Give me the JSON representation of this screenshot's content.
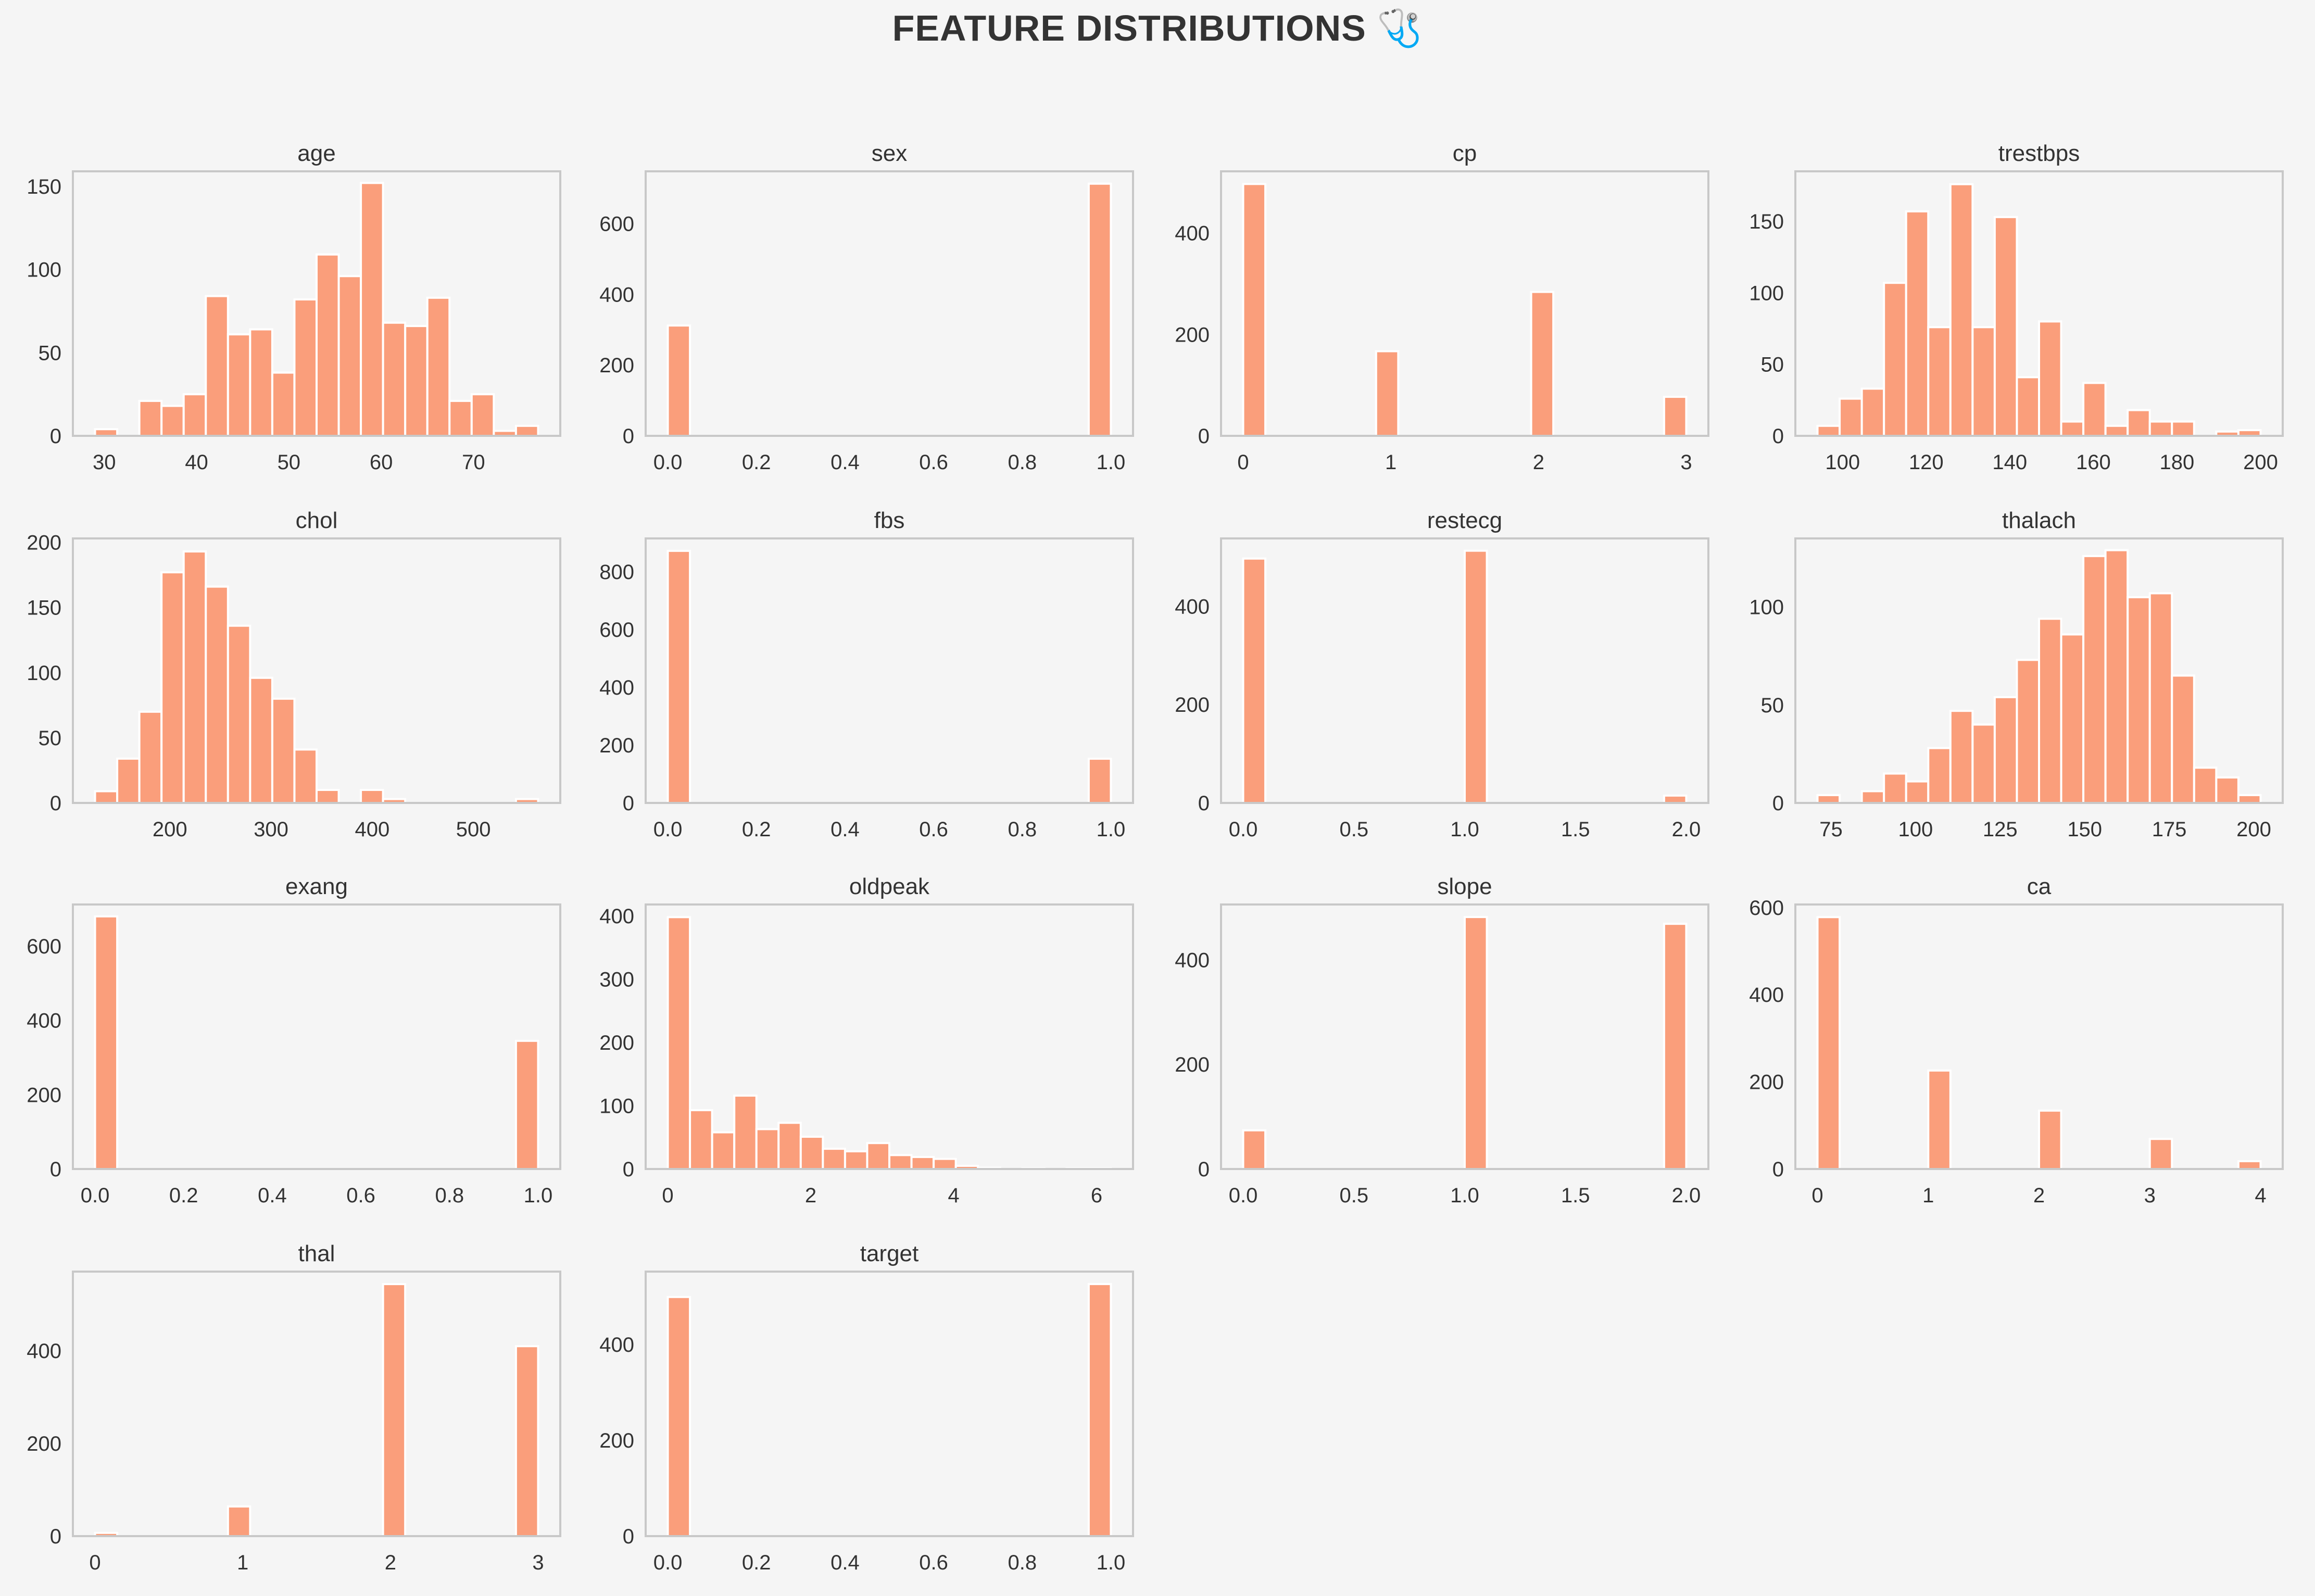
{
  "title": "FEATURE DISTRIBUTIONS 🩺",
  "colors": {
    "bar": "#fa9e7b",
    "bar_edge": "#ffffff",
    "frame": "#c8c8c8",
    "text": "#333333",
    "background": "#f5f5f5"
  },
  "chart_data": [
    {
      "type": "bar",
      "title": "age",
      "xlabel": "",
      "ylabel": "",
      "bin_edges": [
        29,
        31.4,
        33.8,
        36.2,
        38.6,
        41,
        43.4,
        45.8,
        48.2,
        50.6,
        53,
        55.4,
        57.8,
        60.2,
        62.6,
        65,
        67.4,
        69.8,
        72.2,
        74.6,
        77
      ],
      "values": [
        4,
        0,
        21,
        18,
        25,
        84,
        61,
        64,
        38,
        82,
        109,
        96,
        152,
        68,
        66,
        83,
        21,
        25,
        3,
        6
      ],
      "xlim": [
        26.6,
        79.4
      ],
      "ylim": [
        0,
        159
      ],
      "xticks": [
        30,
        40,
        50,
        60,
        70
      ],
      "yticks": [
        0,
        50,
        100,
        150
      ],
      "xtick_labels": [
        "30",
        "40",
        "50",
        "60",
        "70"
      ],
      "ytick_labels": [
        "0",
        "50",
        "100",
        "150"
      ]
    },
    {
      "type": "bar",
      "title": "sex",
      "xlabel": "",
      "ylabel": "",
      "bin_edges": [
        0,
        0.05,
        0.1,
        0.15,
        0.2,
        0.25,
        0.3,
        0.35,
        0.4,
        0.45,
        0.5,
        0.55,
        0.6,
        0.65,
        0.7,
        0.75,
        0.8,
        0.85,
        0.9,
        0.95,
        1.0
      ],
      "values": [
        312,
        0,
        0,
        0,
        0,
        0,
        0,
        0,
        0,
        0,
        0,
        0,
        0,
        0,
        0,
        0,
        0,
        0,
        0,
        713
      ],
      "xlim": [
        -0.05,
        1.05
      ],
      "ylim": [
        0,
        748
      ],
      "xticks": [
        0,
        0.2,
        0.4,
        0.6,
        0.8,
        1.0
      ],
      "yticks": [
        0,
        200,
        400,
        600
      ],
      "xtick_labels": [
        "0.0",
        "0.2",
        "0.4",
        "0.6",
        "0.8",
        "1.0"
      ],
      "ytick_labels": [
        "0",
        "200",
        "400",
        "600"
      ]
    },
    {
      "type": "bar",
      "title": "cp",
      "xlabel": "",
      "ylabel": "",
      "bin_edges": [
        0,
        0.15,
        0.3,
        0.45,
        0.6,
        0.75,
        0.9,
        1.05,
        1.2,
        1.35,
        1.5,
        1.65,
        1.8,
        1.95,
        2.1,
        2.25,
        2.4,
        2.55,
        2.7,
        2.85,
        3.0
      ],
      "values": [
        497,
        0,
        0,
        0,
        0,
        0,
        167,
        0,
        0,
        0,
        0,
        0,
        0,
        284,
        0,
        0,
        0,
        0,
        0,
        77
      ],
      "xlim": [
        -0.15,
        3.15
      ],
      "ylim": [
        0,
        522
      ],
      "xticks": [
        0,
        1,
        2,
        3
      ],
      "yticks": [
        0,
        200,
        400
      ],
      "xtick_labels": [
        "0",
        "1",
        "2",
        "3"
      ],
      "ytick_labels": [
        "0",
        "200",
        "400"
      ]
    },
    {
      "type": "bar",
      "title": "trestbps",
      "xlabel": "",
      "ylabel": "",
      "bin_edges": [
        94,
        99.3,
        104.6,
        109.9,
        115.2,
        120.5,
        125.8,
        131.1,
        136.4,
        141.7,
        147,
        152.3,
        157.6,
        162.9,
        168.2,
        173.5,
        178.8,
        184.1,
        189.4,
        194.7,
        200
      ],
      "values": [
        7,
        26,
        33,
        107,
        157,
        76,
        176,
        76,
        153,
        41,
        80,
        10,
        37,
        7,
        18,
        10,
        10,
        0,
        3,
        4
      ],
      "xlim": [
        88.7,
        205.3
      ],
      "ylim": [
        0,
        185
      ],
      "xticks": [
        100,
        120,
        140,
        160,
        180,
        200
      ],
      "yticks": [
        0,
        50,
        100,
        150
      ],
      "xtick_labels": [
        "100",
        "120",
        "140",
        "160",
        "180",
        "200"
      ],
      "ytick_labels": [
        "0",
        "50",
        "100",
        "150"
      ]
    },
    {
      "type": "bar",
      "title": "chol",
      "xlabel": "",
      "ylabel": "",
      "bin_edges": [
        126,
        147.9,
        169.8,
        191.7,
        213.6,
        235.5,
        257.4,
        279.3,
        301.2,
        323.1,
        345,
        366.9,
        388.8,
        410.7,
        432.6,
        454.5,
        476.4,
        498.3,
        520.2,
        542.1,
        564
      ],
      "values": [
        9,
        34,
        70,
        177,
        193,
        166,
        136,
        96,
        80,
        41,
        10,
        0,
        10,
        3,
        0,
        0,
        0,
        0,
        0,
        3
      ],
      "xlim": [
        104.1,
        585.9
      ],
      "ylim": [
        0,
        203
      ],
      "xticks": [
        200,
        300,
        400,
        500
      ],
      "yticks": [
        0,
        50,
        100,
        150,
        200
      ],
      "xtick_labels": [
        "200",
        "300",
        "400",
        "500"
      ],
      "ytick_labels": [
        "0",
        "50",
        "100",
        "150",
        "200"
      ]
    },
    {
      "type": "bar",
      "title": "fbs",
      "xlabel": "",
      "ylabel": "",
      "bin_edges": [
        0,
        0.05,
        0.1,
        0.15,
        0.2,
        0.25,
        0.3,
        0.35,
        0.4,
        0.45,
        0.5,
        0.55,
        0.6,
        0.65,
        0.7,
        0.75,
        0.8,
        0.85,
        0.9,
        0.95,
        1.0
      ],
      "values": [
        872,
        0,
        0,
        0,
        0,
        0,
        0,
        0,
        0,
        0,
        0,
        0,
        0,
        0,
        0,
        0,
        0,
        0,
        0,
        153
      ],
      "xlim": [
        -0.05,
        1.05
      ],
      "ylim": [
        0,
        915
      ],
      "xticks": [
        0,
        0.2,
        0.4,
        0.6,
        0.8,
        1.0
      ],
      "yticks": [
        0,
        200,
        400,
        600,
        800
      ],
      "xtick_labels": [
        "0.0",
        "0.2",
        "0.4",
        "0.6",
        "0.8",
        "1.0"
      ],
      "ytick_labels": [
        "0",
        "200",
        "400",
        "600",
        "800"
      ]
    },
    {
      "type": "bar",
      "title": "restecg",
      "xlabel": "",
      "ylabel": "",
      "bin_edges": [
        0,
        0.1,
        0.2,
        0.3,
        0.4,
        0.5,
        0.6,
        0.7,
        0.8,
        0.9,
        1.0,
        1.1,
        1.2,
        1.3,
        1.4,
        1.5,
        1.6,
        1.7,
        1.8,
        1.9,
        2.0
      ],
      "values": [
        497,
        0,
        0,
        0,
        0,
        0,
        0,
        0,
        0,
        0,
        513,
        0,
        0,
        0,
        0,
        0,
        0,
        0,
        0,
        15
      ],
      "xlim": [
        -0.1,
        2.1
      ],
      "ylim": [
        0,
        538
      ],
      "xticks": [
        0,
        0.5,
        1.0,
        1.5,
        2.0
      ],
      "yticks": [
        0,
        200,
        400
      ],
      "xtick_labels": [
        "0.0",
        "0.5",
        "1.0",
        "1.5",
        "2.0"
      ],
      "ytick_labels": [
        "0",
        "200",
        "400"
      ]
    },
    {
      "type": "bar",
      "title": "thalach",
      "xlabel": "",
      "ylabel": "",
      "bin_edges": [
        71,
        77.55,
        84.1,
        90.65,
        97.2,
        103.75,
        110.3,
        116.85,
        123.4,
        129.95,
        136.5,
        143.05,
        149.6,
        156.15,
        162.7,
        169.25,
        175.8,
        182.35,
        188.9,
        195.45,
        202
      ],
      "values": [
        4,
        0,
        6,
        15,
        11,
        28,
        47,
        40,
        54,
        73,
        94,
        86,
        126,
        129,
        105,
        107,
        65,
        18,
        13,
        4
      ],
      "xlim": [
        64.45,
        208.55
      ],
      "ylim": [
        0,
        135
      ],
      "xticks": [
        75,
        100,
        125,
        150,
        175,
        200
      ],
      "yticks": [
        0,
        50,
        100
      ],
      "xtick_labels": [
        "75",
        "100",
        "125",
        "150",
        "175",
        "200"
      ],
      "ytick_labels": [
        "0",
        "50",
        "100"
      ]
    },
    {
      "type": "bar",
      "title": "exang",
      "xlabel": "",
      "ylabel": "",
      "bin_edges": [
        0,
        0.05,
        0.1,
        0.15,
        0.2,
        0.25,
        0.3,
        0.35,
        0.4,
        0.45,
        0.5,
        0.55,
        0.6,
        0.65,
        0.7,
        0.75,
        0.8,
        0.85,
        0.9,
        0.95,
        1.0
      ],
      "values": [
        680,
        0,
        0,
        0,
        0,
        0,
        0,
        0,
        0,
        0,
        0,
        0,
        0,
        0,
        0,
        0,
        0,
        0,
        0,
        345
      ],
      "xlim": [
        -0.05,
        1.05
      ],
      "ylim": [
        0,
        712
      ],
      "xticks": [
        0,
        0.2,
        0.4,
        0.6,
        0.8,
        1.0
      ],
      "yticks": [
        0,
        200,
        400,
        600
      ],
      "xtick_labels": [
        "0.0",
        "0.2",
        "0.4",
        "0.6",
        "0.8",
        "1.0"
      ],
      "ytick_labels": [
        "0",
        "200",
        "400",
        "600"
      ]
    },
    {
      "type": "bar",
      "title": "oldpeak",
      "xlabel": "",
      "ylabel": "",
      "bin_edges": [
        0,
        0.31,
        0.62,
        0.93,
        1.24,
        1.55,
        1.86,
        2.17,
        2.48,
        2.79,
        3.1,
        3.41,
        3.72,
        4.03,
        4.34,
        4.65,
        4.96,
        5.27,
        5.58,
        5.89,
        6.2
      ],
      "values": [
        398,
        93,
        58,
        116,
        63,
        73,
        51,
        32,
        28,
        41,
        22,
        19,
        16,
        5,
        2,
        0,
        1,
        0,
        1,
        1
      ],
      "xlim": [
        -0.31,
        6.51
      ],
      "ylim": [
        0,
        418
      ],
      "xticks": [
        0,
        2,
        4,
        6
      ],
      "yticks": [
        0,
        100,
        200,
        300,
        400
      ],
      "xtick_labels": [
        "0",
        "2",
        "4",
        "6"
      ],
      "ytick_labels": [
        "0",
        "100",
        "200",
        "300",
        "400"
      ]
    },
    {
      "type": "bar",
      "title": "slope",
      "xlabel": "",
      "ylabel": "",
      "bin_edges": [
        0,
        0.1,
        0.2,
        0.3,
        0.4,
        0.5,
        0.6,
        0.7,
        0.8,
        0.9,
        1.0,
        1.1,
        1.2,
        1.3,
        1.4,
        1.5,
        1.6,
        1.7,
        1.8,
        1.9,
        2.0
      ],
      "values": [
        74,
        0,
        0,
        0,
        0,
        0,
        0,
        0,
        0,
        0,
        482,
        0,
        0,
        0,
        0,
        0,
        0,
        0,
        0,
        469
      ],
      "xlim": [
        -0.1,
        2.1
      ],
      "ylim": [
        0,
        506
      ],
      "xticks": [
        0,
        0.5,
        1.0,
        1.5,
        2.0
      ],
      "yticks": [
        0,
        200,
        400
      ],
      "xtick_labels": [
        "0.0",
        "0.5",
        "1.0",
        "1.5",
        "2.0"
      ],
      "ytick_labels": [
        "0",
        "200",
        "400"
      ]
    },
    {
      "type": "bar",
      "title": "ca",
      "xlabel": "",
      "ylabel": "",
      "bin_edges": [
        0,
        0.2,
        0.4,
        0.6,
        0.8,
        1.0,
        1.2,
        1.4,
        1.6,
        1.8,
        2.0,
        2.2,
        2.4,
        2.6,
        2.8,
        3.0,
        3.2,
        3.4,
        3.6,
        3.8,
        4.0
      ],
      "values": [
        578,
        0,
        0,
        0,
        0,
        226,
        0,
        0,
        0,
        0,
        134,
        0,
        0,
        0,
        0,
        69,
        0,
        0,
        0,
        18
      ],
      "xlim": [
        -0.2,
        4.2
      ],
      "ylim": [
        0,
        607
      ],
      "xticks": [
        0,
        1,
        2,
        3,
        4
      ],
      "yticks": [
        0,
        200,
        400,
        600
      ],
      "xtick_labels": [
        "0",
        "1",
        "2",
        "3",
        "4"
      ],
      "ytick_labels": [
        "0",
        "200",
        "400",
        "600"
      ]
    },
    {
      "type": "bar",
      "title": "thal",
      "xlabel": "",
      "ylabel": "",
      "bin_edges": [
        0,
        0.15,
        0.3,
        0.45,
        0.6,
        0.75,
        0.9,
        1.05,
        1.2,
        1.35,
        1.5,
        1.65,
        1.8,
        1.95,
        2.1,
        2.25,
        2.4,
        2.55,
        2.7,
        2.85,
        3.0
      ],
      "values": [
        7,
        0,
        0,
        0,
        0,
        0,
        64,
        0,
        0,
        0,
        0,
        0,
        0,
        544,
        0,
        0,
        0,
        0,
        0,
        410
      ],
      "xlim": [
        -0.15,
        3.15
      ],
      "ylim": [
        0,
        571
      ],
      "xticks": [
        0,
        1,
        2,
        3
      ],
      "yticks": [
        0,
        200,
        400
      ],
      "xtick_labels": [
        "0",
        "1",
        "2",
        "3"
      ],
      "ytick_labels": [
        "0",
        "200",
        "400"
      ]
    },
    {
      "type": "bar",
      "title": "target",
      "xlabel": "",
      "ylabel": "",
      "bin_edges": [
        0,
        0.05,
        0.1,
        0.15,
        0.2,
        0.25,
        0.3,
        0.35,
        0.4,
        0.45,
        0.5,
        0.55,
        0.6,
        0.65,
        0.7,
        0.75,
        0.8,
        0.85,
        0.9,
        0.95,
        1.0
      ],
      "values": [
        499,
        0,
        0,
        0,
        0,
        0,
        0,
        0,
        0,
        0,
        0,
        0,
        0,
        0,
        0,
        0,
        0,
        0,
        0,
        526
      ],
      "xlim": [
        -0.05,
        1.05
      ],
      "ylim": [
        0,
        552
      ],
      "xticks": [
        0,
        0.2,
        0.4,
        0.6,
        0.8,
        1.0
      ],
      "yticks": [
        0,
        200,
        400
      ],
      "xtick_labels": [
        "0.0",
        "0.2",
        "0.4",
        "0.6",
        "0.8",
        "1.0"
      ],
      "ytick_labels": [
        "0",
        "200",
        "400"
      ]
    }
  ]
}
